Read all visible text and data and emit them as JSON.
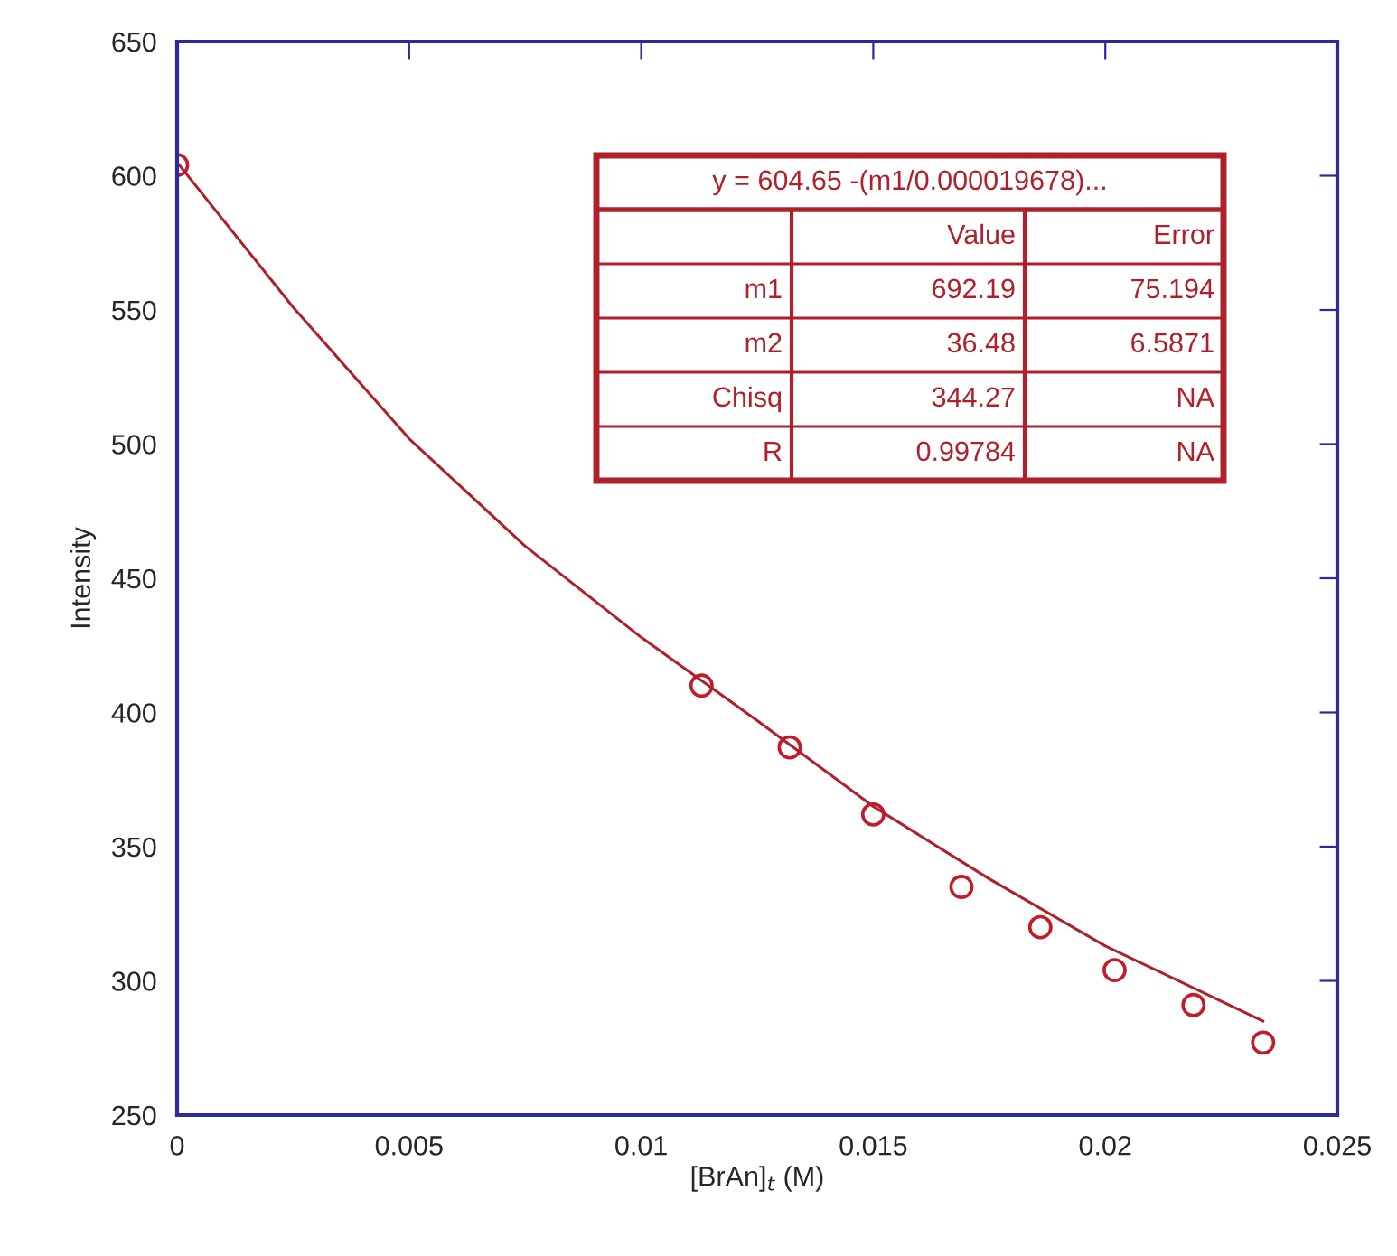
{
  "chart_data": {
    "type": "scatter",
    "xlabel": "[BrAn]$_{t}$ (M)",
    "ylabel": "Intensity",
    "xlim": [
      0,
      0.025
    ],
    "ylim": [
      250,
      650
    ],
    "xticks": [
      0,
      0.005,
      0.01,
      0.015,
      0.02,
      0.025
    ],
    "yticks": [
      250,
      300,
      350,
      400,
      450,
      500,
      550,
      600,
      650
    ],
    "grid": false,
    "legend": false,
    "series": [
      {
        "marker": "circle",
        "color": "#c41a2a",
        "x": [
          0,
          0.0113,
          0.0132,
          0.015,
          0.0169,
          0.0186,
          0.0202,
          0.0219,
          0.0234
        ],
        "values": [
          604,
          410,
          387,
          362,
          335,
          320,
          304,
          291,
          277
        ]
      },
      {
        "type": "line",
        "marker": "none",
        "color": "#b0202a",
        "x": [
          0,
          0.0025,
          0.005,
          0.0075,
          0.01,
          0.0125,
          0.015,
          0.0175,
          0.02,
          0.0234
        ],
        "values": [
          605,
          551,
          502,
          462,
          428,
          397,
          365,
          338,
          313,
          285
        ]
      }
    ],
    "annotations": [
      "y = 604.65 -(m1/0.000019678)...",
      "Value",
      "Error",
      "m1",
      "692.19",
      "75.194",
      "m2",
      "36.48",
      "6.5871",
      "Chisq",
      "344.27",
      "NA",
      "R",
      "0.99784",
      "NA"
    ]
  }
}
